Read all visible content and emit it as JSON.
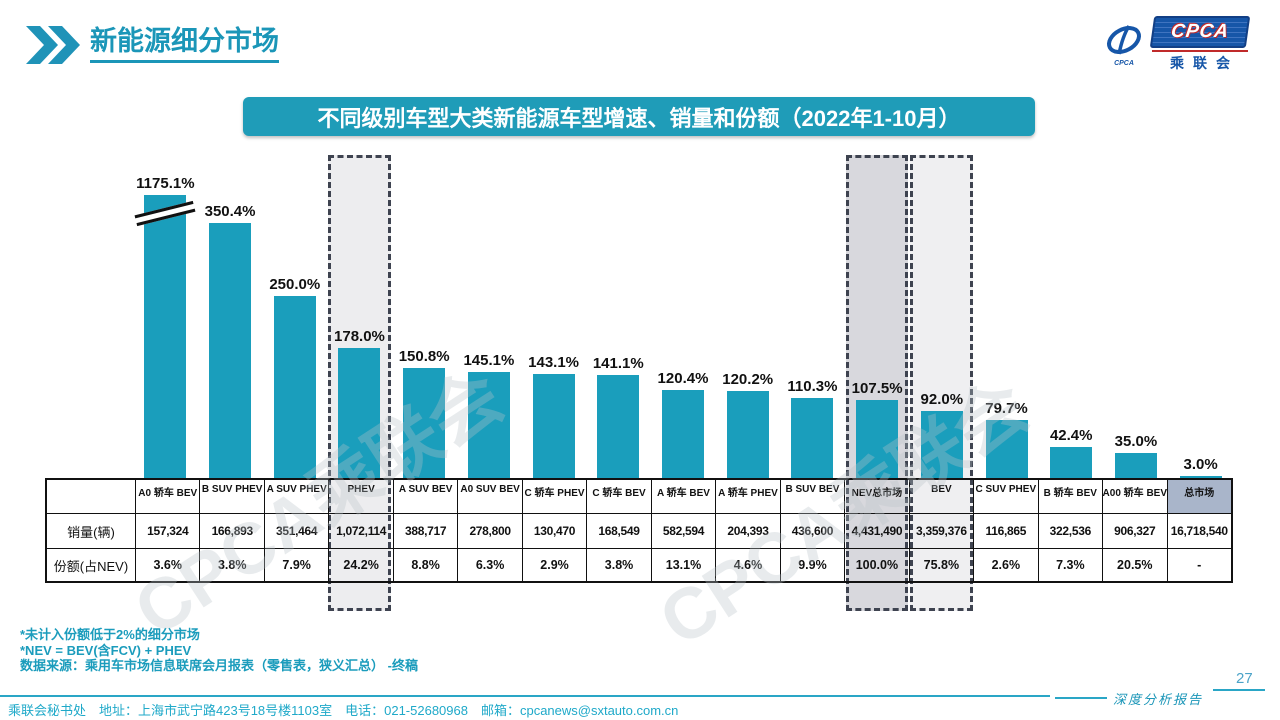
{
  "page": {
    "header_title": "新能源细分市场",
    "page_number": "27",
    "report_label": "深度分析报告",
    "footer_contact": "乘联会秘书处　地址：上海市武宁路423号18号楼1103室　电话：021-52680968　邮箱：cpcanews@sxtauto.com.cn",
    "watermark": "CPCA乘联会"
  },
  "logo": {
    "en": "CPCA",
    "cn": "乘联会",
    "emblem_text": "CPCA"
  },
  "banner": {
    "title": "不同级别车型大类新能源车型增速、销量和份额（2022年1-10月）"
  },
  "notes": [
    "*未计入份额低于2%的细分市场",
    "*NEV = BEV(含FCV) + PHEV",
    "数据来源：乘用车市场信息联席会月报表（零售表，狭义汇总） -终稿"
  ],
  "table": {
    "row_labels": [
      "销量(辆)",
      "份额(占NEV)"
    ]
  },
  "chart_data": {
    "type": "bar",
    "title": "不同级别车型大类新能源车型增速、销量和份额（2022年1-10月）",
    "categories": [
      "A0 轿车 BEV",
      "B SUV PHEV",
      "A SUV PHEV",
      "PHEV",
      "A SUV BEV",
      "A0 SUV BEV",
      "C 轿车 PHEV",
      "C 轿车 BEV",
      "A 轿车 BEV",
      "A 轿车 PHEV",
      "B SUV BEV",
      "NEV总市场",
      "BEV",
      "C SUV PHEV",
      "B 轿车 BEV",
      "A00 轿车 BEV",
      "总市场"
    ],
    "series": [
      {
        "name": "增速(%)",
        "values": [
          1175.1,
          350.4,
          250.0,
          178.0,
          150.8,
          145.1,
          143.1,
          141.1,
          120.4,
          120.2,
          110.3,
          107.5,
          92.0,
          79.7,
          42.4,
          35.0,
          3.0
        ]
      },
      {
        "name": "销量(辆)",
        "values": [
          "157,324",
          "166,893",
          "351,464",
          "1,072,114",
          "388,717",
          "278,800",
          "130,470",
          "168,549",
          "582,594",
          "204,393",
          "436,600",
          "4,431,490",
          "3,359,376",
          "116,865",
          "322,536",
          "906,327",
          "16,718,540"
        ]
      },
      {
        "name": "份额(占NEV)",
        "values": [
          "3.6%",
          "3.8%",
          "7.9%",
          "24.2%",
          "8.8%",
          "6.3%",
          "2.9%",
          "3.8%",
          "13.1%",
          "4.6%",
          "9.9%",
          "100.0%",
          "75.8%",
          "2.6%",
          "7.3%",
          "20.5%",
          "-"
        ]
      }
    ],
    "bar_color": "#1a9ebc",
    "axis_break_first_bar": true,
    "highlight_columns": [
      {
        "category": "PHEV",
        "bg": "#ededef"
      },
      {
        "category": "NEV总市场",
        "bg": "#d8d8dd"
      },
      {
        "category": "BEV",
        "bg": "#efeff1"
      }
    ],
    "total_market_header_bg": "#a9b5ca",
    "legend_position": "none",
    "grid": false,
    "value_suffix": "%"
  }
}
